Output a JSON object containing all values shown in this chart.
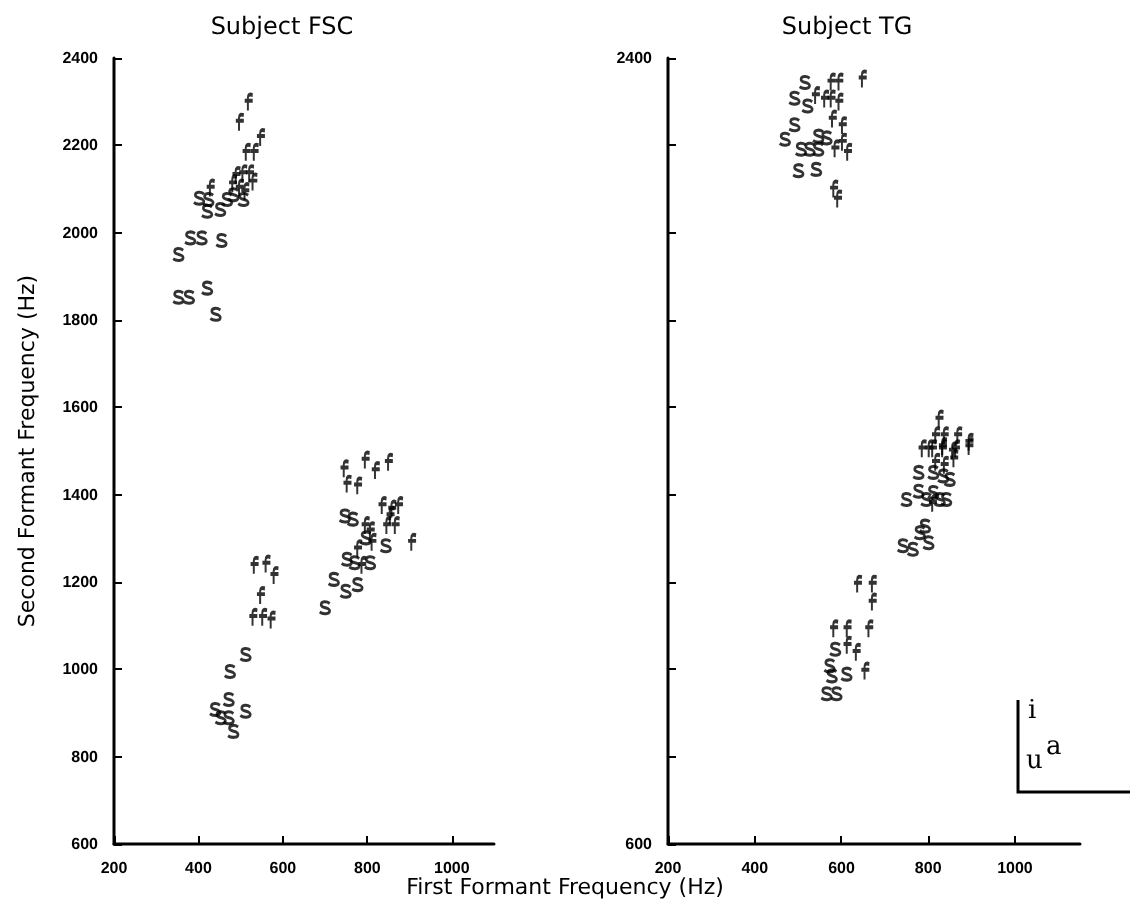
{
  "chart_data": [
    {
      "type": "scatter",
      "title": "Subject FSC",
      "xlabel": "First Formant Frequency (Hz)",
      "ylabel": "Second Formant Frequency (Hz)",
      "xlim": [
        200,
        1100
      ],
      "xticks": [
        200,
        400,
        600,
        800,
        1000
      ],
      "ylim": [
        600,
        2400
      ],
      "yticks": [
        600,
        800,
        1000,
        1200,
        1400,
        1600,
        1800,
        2000,
        2200,
        2400
      ],
      "series": [
        {
          "color": "#000000",
          "x": [
            352,
            380,
            407,
            454,
            352,
            377,
            420,
            440,
            401,
            420,
            451,
            467,
            482,
            506,
            423,
            439,
            452,
            471,
            471,
            474,
            482,
            511,
            511,
            699,
            720,
            748,
            776,
            751,
            769,
            806,
            746,
            765,
            843,
            796
          ],
          "values": [
            1950,
            1988,
            1988,
            1982,
            1852,
            1852,
            1873,
            1813,
            2079,
            2049,
            2053,
            2076,
            2087,
            2076,
            2076,
            908,
            889,
            889,
            931,
            995,
            858,
            1034,
            904,
            1141,
            1206,
            1179,
            1194,
            1252,
            1244,
            1244,
            1351,
            1344,
            1283,
            1301
          ]
        },
        {
          "color": "#000000",
          "x": [
            519,
            498,
            514,
            533,
            548,
            490,
            506,
            522,
            530,
            482,
            498,
            511,
            429,
            533,
            561,
            580,
            548,
            530,
            553,
            573,
            746,
            753,
            778,
            796,
            820,
            851,
            836,
            859,
            875,
            847,
            867,
            906,
            778,
            796,
            808,
            788,
            812,
            855
          ],
          "values": [
            2298,
            2252,
            2183,
            2183,
            2217,
            2130,
            2134,
            2134,
            2115,
            2111,
            2101,
            2093,
            2101,
            1237,
            1240,
            1214,
            1168,
            1118,
            1118,
            1112,
            1458,
            1423,
            1419,
            1478,
            1454,
            1473,
            1374,
            1366,
            1374,
            1328,
            1328,
            1290,
            1275,
            1328,
            1316,
            1237,
            1290,
            1351
          ]
        }
      ]
    },
    {
      "type": "scatter",
      "title": "Subject TG",
      "annotations": [
        "i",
        "u",
        "a"
      ],
      "xlim": [
        200,
        1150
      ],
      "xticks": [
        200,
        400,
        600,
        800,
        1000
      ],
      "ylim": [
        600,
        2400
      ],
      "yticks": [
        600,
        {
          "value": 800,
          "label": null
        },
        {
          "value": 1000,
          "label": null
        },
        {
          "value": 1200,
          "label": null
        },
        {
          "value": 1400,
          "label": null
        },
        {
          "value": 1600,
          "label": null
        },
        {
          "value": 1800,
          "label": null
        },
        {
          "value": 2000,
          "label": null
        },
        {
          "value": 2200,
          "label": null
        },
        2400
      ],
      "series": [
        {
          "color": "#000000",
          "x": [
            515,
            491,
            521,
            491,
            469,
            506,
            526,
            546,
            546,
            565,
            500,
            541,
            777,
            811,
            834,
            849,
            749,
            777,
            795,
            811,
            826,
            841,
            741,
            764,
            780,
            792,
            800,
            585,
            572,
            577,
            611,
            565,
            588
          ],
          "values": [
            2344,
            2308,
            2290,
            2247,
            2214,
            2191,
            2191,
            2191,
            2221,
            2217,
            2142,
            2145,
            1451,
            1451,
            1443,
            1435,
            1389,
            1408,
            1389,
            1405,
            1389,
            1389,
            1283,
            1275,
            1313,
            1328,
            1290,
            1046,
            1008,
            985,
            989,
            944,
            944
          ]
        },
        {
          "color": "#000000",
          "x": [
            577,
            595,
            649,
            541,
            562,
            577,
            595,
            580,
            603,
            586,
            603,
            615,
            583,
            592,
            826,
            818,
            838,
            869,
            895,
            787,
            803,
            834,
            864,
            811,
            834,
            857,
            895,
            818,
            838,
            860,
            811,
            638,
            672,
            672,
            583,
            614,
            664,
            614,
            635,
            655
          ],
          "values": [
            2344,
            2344,
            2351,
            2313,
            2305,
            2305,
            2298,
            2259,
            2244,
            2191,
            2206,
            2183,
            2099,
            2076,
            1572,
            1534,
            1534,
            1534,
            1519,
            1504,
            1504,
            1504,
            1504,
            1504,
            1509,
            1499,
            1509,
            1473,
            1466,
            1481,
            1379,
            1194,
            1194,
            1153,
            1092,
            1092,
            1092,
            1054,
            1038,
            995
          ]
        }
      ]
    }
  ]
}
